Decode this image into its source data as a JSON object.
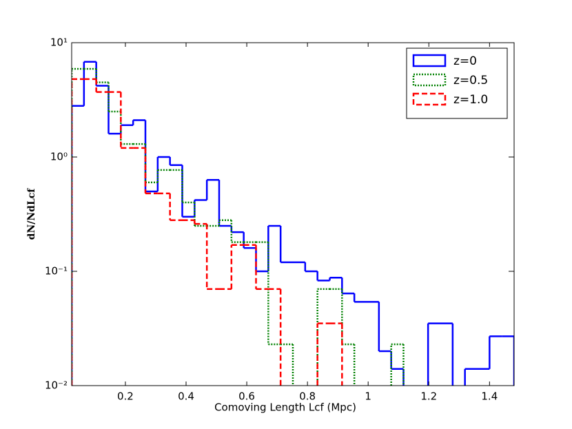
{
  "chart_data": {
    "type": "histogram",
    "xlabel": "Comoving Length Lcf (Mpc)",
    "ylabel": "dN/NdLcf",
    "xlim": [
      0.023,
      1.481
    ],
    "ylim": [
      0.01,
      10
    ],
    "yscale": "log",
    "xticks": [
      0.2,
      0.4,
      0.6,
      0.8,
      1.0,
      1.2,
      1.4
    ],
    "yticks": [
      {
        "value": 0.01,
        "label": "10⁻²"
      },
      {
        "value": 0.1,
        "label": "10⁻¹"
      },
      {
        "value": 1,
        "label": "10⁰"
      },
      {
        "value": 10,
        "label": "10¹"
      }
    ],
    "legend": "upper right",
    "bins": [
      0.023,
      0.0635,
      0.104,
      0.1445,
      0.185,
      0.2255,
      0.266,
      0.3065,
      0.347,
      0.3875,
      0.428,
      0.4685,
      0.509,
      0.5495,
      0.59,
      0.6305,
      0.671,
      0.7115,
      0.752,
      0.7925,
      0.833,
      0.8735,
      0.914,
      0.9545,
      0.995,
      1.0355,
      1.076,
      1.1165,
      1.157,
      1.1975,
      1.238,
      1.2785,
      1.319,
      1.3595,
      1.4,
      1.4405,
      1.481
    ],
    "series": [
      {
        "name": "z=0",
        "color": "#0000ff",
        "linestyle": "solid",
        "values": [
          2.8,
          6.8,
          4.2,
          1.6,
          1.9,
          2.1,
          0.5,
          1.0,
          0.85,
          0.3,
          0.42,
          0.63,
          0.25,
          0.22,
          0.16,
          0.1,
          0.25,
          0.12,
          0.12,
          0.1,
          0.083,
          0.088,
          0.064,
          0.054,
          0.054,
          0.02,
          0.014,
          null,
          null,
          0.035,
          0.035,
          null,
          0.014,
          0.014,
          0.027,
          0.027
        ]
      },
      {
        "name": "z=0.5",
        "color": "#008000",
        "linestyle": "dotted",
        "values": [
          5.9,
          5.9,
          4.5,
          2.5,
          1.3,
          1.3,
          0.6,
          0.77,
          0.77,
          0.4,
          0.25,
          0.25,
          0.28,
          0.18,
          0.18,
          0.18,
          0.023,
          0.023,
          null,
          null,
          0.07,
          0.07,
          0.023,
          null,
          null,
          null,
          0.023,
          null,
          null,
          null,
          null,
          null,
          null,
          null,
          null,
          null
        ]
      },
      {
        "name": "z=1.0",
        "color": "#ff0000",
        "linestyle": "dashed",
        "values": [
          4.8,
          4.8,
          3.7,
          3.7,
          1.2,
          1.2,
          0.48,
          0.48,
          0.28,
          0.28,
          0.26,
          0.07,
          0.07,
          0.17,
          0.17,
          0.07,
          0.07,
          null,
          null,
          null,
          0.035,
          0.035,
          null,
          null,
          null,
          null,
          null,
          null,
          null,
          null,
          null,
          null,
          null,
          null,
          null,
          null
        ]
      }
    ]
  }
}
